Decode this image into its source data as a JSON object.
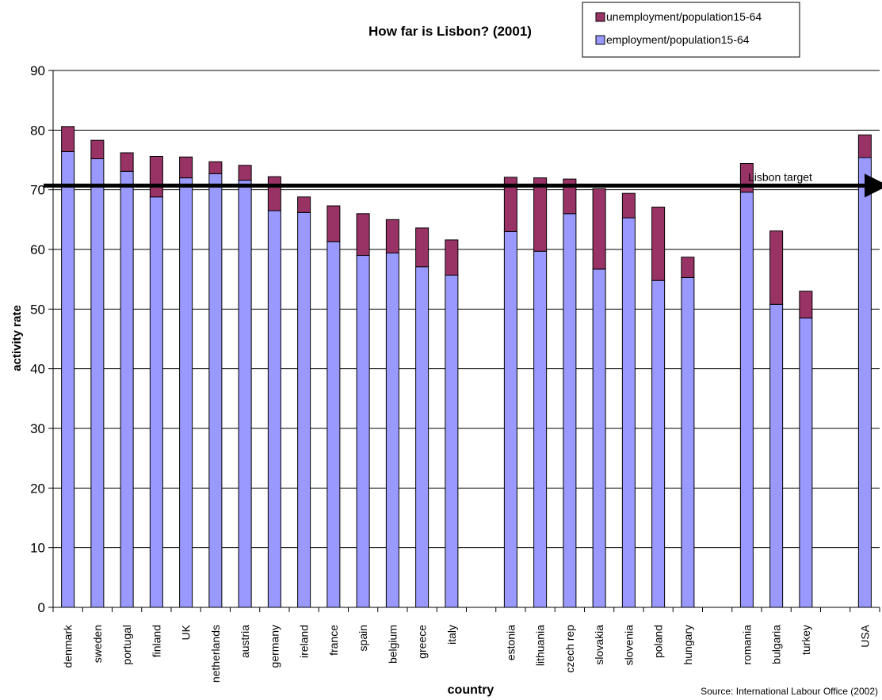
{
  "chart_data": {
    "type": "bar",
    "stacked": true,
    "title": "How far is Lisbon? (2001)",
    "xlabel": "country",
    "ylabel": "activity rate",
    "ylim": [
      0,
      90
    ],
    "yticks": [
      0,
      10,
      20,
      30,
      40,
      50,
      60,
      70,
      80,
      90
    ],
    "grid": true,
    "legend_position": "top-right",
    "categories": [
      "denmark",
      "sweden",
      "portugal",
      "finland",
      "UK",
      "netherlands",
      "austria",
      "germany",
      "ireland",
      "france",
      "spain",
      "belgium",
      "greece",
      "italy",
      "",
      "estonia",
      "lithuania",
      "czech rep",
      "slovakia",
      "slovenia",
      "poland",
      "hungary",
      "",
      "romania",
      "bulgaria",
      "turkey",
      "",
      "USA"
    ],
    "series": [
      {
        "name": "employment/population15-64",
        "color": "#9999ff",
        "values": [
          76.4,
          75.2,
          73.1,
          68.8,
          72.0,
          72.7,
          71.6,
          66.5,
          66.2,
          61.3,
          59.0,
          59.4,
          57.1,
          55.7,
          null,
          63.0,
          59.7,
          66.0,
          56.7,
          65.3,
          54.8,
          55.3,
          null,
          69.6,
          50.8,
          48.5,
          null,
          75.4
        ]
      },
      {
        "name": "unemployment/population15-64",
        "color": "#993366",
        "values": [
          4.2,
          3.1,
          3.1,
          6.8,
          3.5,
          2.0,
          2.5,
          5.7,
          2.6,
          6.0,
          7.0,
          5.6,
          6.5,
          5.9,
          null,
          9.1,
          12.3,
          5.8,
          13.5,
          4.1,
          12.3,
          3.4,
          null,
          4.8,
          12.3,
          4.5,
          null,
          3.8
        ]
      }
    ],
    "reference_line": {
      "label": "Lisbon target",
      "value": 70.7
    },
    "annotations": [
      "Source: International Labour Office (2002)"
    ]
  }
}
